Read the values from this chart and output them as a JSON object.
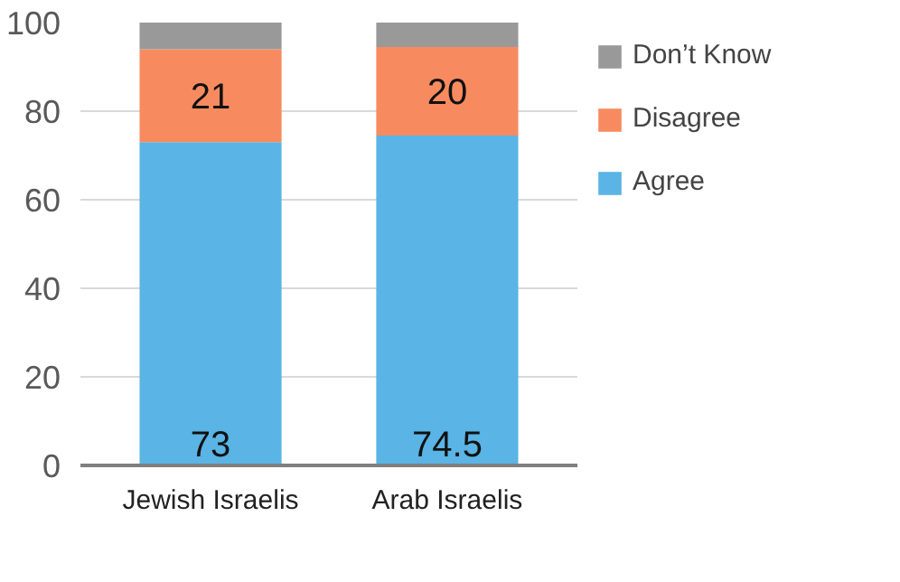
{
  "chart_data": {
    "type": "bar",
    "stacked": true,
    "categories": [
      "Jewish Israelis",
      "Arab Israelis"
    ],
    "series": [
      {
        "name": "Agree",
        "color": "#5ab4e5",
        "values": [
          73,
          74.5
        ],
        "value_labels": [
          "73",
          "74.5"
        ]
      },
      {
        "name": "Disagree",
        "color": "#f78b5f",
        "values": [
          21,
          20
        ],
        "value_labels": [
          "21",
          "20"
        ]
      },
      {
        "name": "Don’t Know",
        "color": "#999999",
        "values": [
          6,
          5.5
        ],
        "value_labels": [
          null,
          null
        ]
      }
    ],
    "ylim": [
      0,
      100
    ],
    "yticks": [
      0,
      20,
      40,
      60,
      80,
      100
    ],
    "grid": "y",
    "legend": "right"
  }
}
